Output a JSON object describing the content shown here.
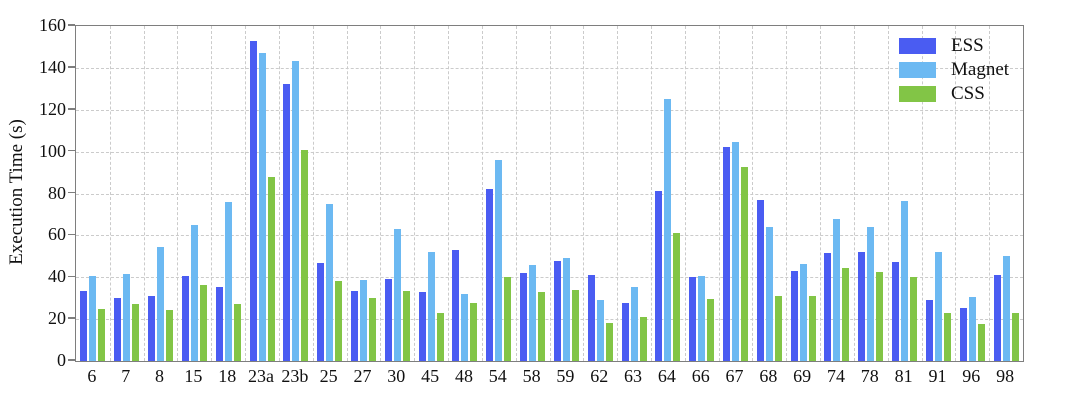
{
  "figure": {
    "ylabel": "Execution Time (s)"
  },
  "chart_data": {
    "type": "bar",
    "title": "",
    "xlabel": "",
    "ylabel": "Execution Time (s)",
    "ylim": [
      0,
      160
    ],
    "ytick_step": 20,
    "grid": true,
    "legend_position": "top-right-inside",
    "categories": [
      "6",
      "7",
      "8",
      "15",
      "18",
      "23a",
      "23b",
      "25",
      "27",
      "30",
      "45",
      "48",
      "54",
      "58",
      "59",
      "62",
      "63",
      "64",
      "66",
      "67",
      "68",
      "69",
      "74",
      "78",
      "81",
      "91",
      "96",
      "98"
    ],
    "series": [
      {
        "name": "ESS",
        "color": "#4a5cf2",
        "values": [
          33.5,
          30,
          31,
          40.5,
          35.5,
          153,
          132.5,
          47,
          33.5,
          39,
          33,
          53,
          82,
          42,
          48,
          41,
          27.5,
          81,
          40,
          102,
          77,
          43,
          51.5,
          52,
          47.5,
          29,
          25.5,
          41
        ]
      },
      {
        "name": "Magnet",
        "color": "#6cb9f2",
        "values": [
          40.5,
          41.5,
          54.5,
          65,
          76,
          147,
          143.5,
          75,
          38.5,
          63,
          52,
          32,
          96,
          46,
          49,
          29,
          35.5,
          125,
          40.5,
          104.5,
          64,
          46.5,
          68,
          64,
          76.5,
          52,
          30.5,
          50
        ]
      },
      {
        "name": "CSS",
        "color": "#82c546",
        "values": [
          25,
          27,
          24.5,
          36.5,
          27,
          88,
          101,
          38,
          30,
          33.5,
          23,
          27.5,
          40,
          33,
          34,
          18,
          21,
          61,
          29.5,
          92.5,
          31,
          31,
          44.5,
          42.5,
          40,
          23,
          17.5,
          23
        ]
      }
    ]
  }
}
